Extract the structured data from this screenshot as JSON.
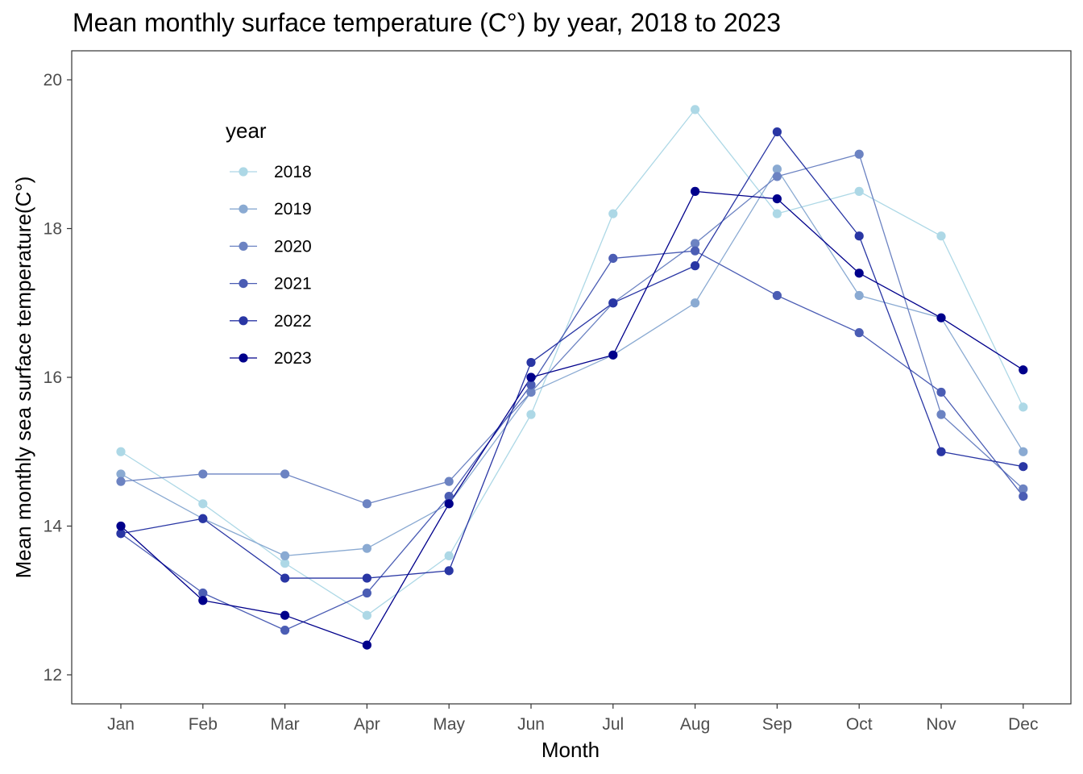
{
  "chart_data": {
    "type": "line",
    "title": "Mean monthly surface temperature (C°) by year, 2018 to 2023",
    "xlabel": "Month",
    "ylabel": "Mean monthly sea surface temperature(C°)",
    "categories": [
      "Jan",
      "Feb",
      "Mar",
      "Apr",
      "May",
      "Jun",
      "Jul",
      "Aug",
      "Sep",
      "Oct",
      "Nov",
      "Dec"
    ],
    "ylim": [
      11.6,
      20.4
    ],
    "yticks": [
      12,
      14,
      16,
      18,
      20
    ],
    "grid": false,
    "legend": {
      "title": "year",
      "placement": "top-left"
    },
    "series": [
      {
        "name": "2018",
        "color": "#add8e6",
        "values": [
          15.0,
          14.3,
          13.5,
          12.8,
          13.6,
          15.5,
          18.2,
          19.6,
          18.2,
          18.5,
          17.9,
          15.6
        ]
      },
      {
        "name": "2019",
        "color": "#8aaad2",
        "values": [
          14.7,
          14.1,
          13.6,
          13.7,
          14.3,
          15.8,
          16.3,
          17.0,
          18.8,
          17.1,
          16.8,
          15.0
        ]
      },
      {
        "name": "2020",
        "color": "#6c83c2",
        "values": [
          14.6,
          14.7,
          14.7,
          14.3,
          14.6,
          15.8,
          17.0,
          17.8,
          18.7,
          19.0,
          15.5,
          14.5
        ]
      },
      {
        "name": "2021",
        "color": "#4b5db4",
        "values": [
          13.9,
          13.1,
          12.6,
          13.1,
          14.4,
          15.9,
          17.6,
          17.7,
          17.1,
          16.6,
          15.8,
          14.4
        ]
      },
      {
        "name": "2022",
        "color": "#2936a4",
        "values": [
          13.9,
          14.1,
          13.3,
          13.3,
          13.4,
          16.2,
          17.0,
          17.5,
          19.3,
          17.9,
          15.0,
          14.8
        ]
      },
      {
        "name": "2023",
        "color": "#00008b",
        "values": [
          14.0,
          13.0,
          12.8,
          12.4,
          14.3,
          16.0,
          16.3,
          18.5,
          18.4,
          17.4,
          16.8,
          16.1
        ]
      }
    ]
  }
}
